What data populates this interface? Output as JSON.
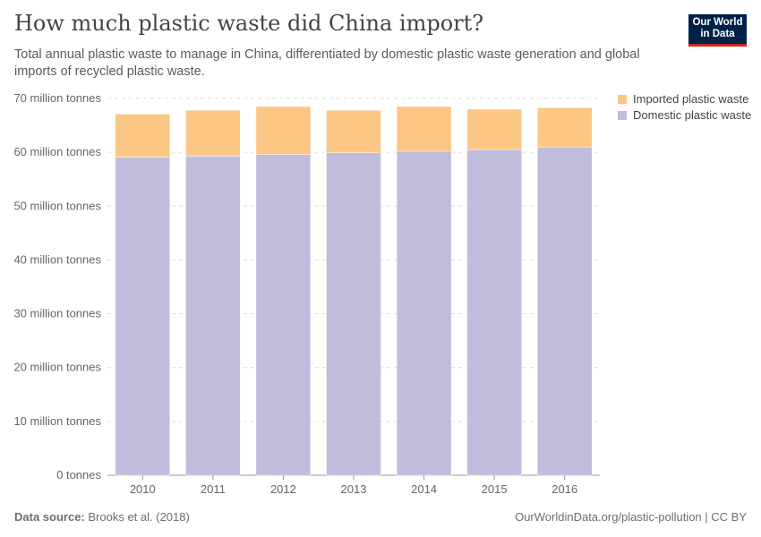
{
  "header": {
    "title": "How much plastic waste did China import?",
    "subtitle": "Total annual plastic waste to manage in China, differentiated by domestic plastic waste generation and global imports of recycled plastic waste.",
    "logo": "Our World in Data"
  },
  "footer": {
    "source_label": "Data source:",
    "source": "Brooks et al. (2018)",
    "url": "OurWorldinData.org/plastic-pollution | CC BY"
  },
  "chart_data": {
    "type": "bar",
    "stacked": true,
    "categories": [
      "2010",
      "2011",
      "2012",
      "2013",
      "2014",
      "2015",
      "2016"
    ],
    "series": [
      {
        "name": "Domestic plastic waste",
        "color": "#c0bcdb",
        "values": [
          59.1,
          59.3,
          59.6,
          59.9,
          60.2,
          60.5,
          60.9
        ]
      },
      {
        "name": "Imported plastic waste",
        "color": "#fcc685",
        "values": [
          8.0,
          8.5,
          8.9,
          7.9,
          8.3,
          7.5,
          7.4
        ]
      }
    ],
    "yunit": "million tonnes",
    "ylim": [
      0,
      70
    ],
    "yticks": [
      {
        "v": 0,
        "label": "0 tonnes"
      },
      {
        "v": 10,
        "label": "10 million tonnes"
      },
      {
        "v": 20,
        "label": "20 million tonnes"
      },
      {
        "v": 30,
        "label": "30 million tonnes"
      },
      {
        "v": 40,
        "label": "40 million tonnes"
      },
      {
        "v": 50,
        "label": "50 million tonnes"
      },
      {
        "v": 60,
        "label": "60 million tonnes"
      },
      {
        "v": 70,
        "label": "70 million tonnes"
      }
    ],
    "grid": true,
    "legend": "top-right"
  }
}
